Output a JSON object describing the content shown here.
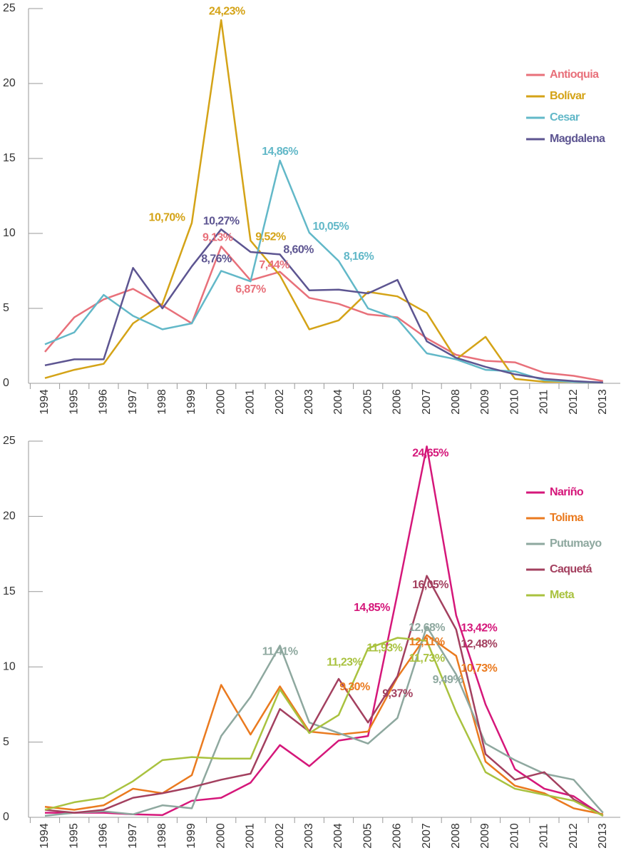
{
  "chart_data": [
    {
      "type": "line",
      "categories": [
        "1994",
        "1995",
        "1996",
        "1997",
        "1998",
        "1999",
        "2000",
        "2001",
        "2002",
        "2003",
        "2004",
        "2005",
        "2006",
        "2007",
        "2008",
        "2009",
        "2010",
        "2011",
        "2012",
        "2013"
      ],
      "ylim": [
        0,
        25
      ],
      "yticks": [
        0,
        5,
        10,
        15,
        20,
        25
      ],
      "legend": "right",
      "series": [
        {
          "name": "Antioquia",
          "color": "#e8707a",
          "values": [
            2.1,
            4.4,
            5.6,
            6.3,
            5.2,
            4.0,
            9.13,
            6.87,
            7.44,
            5.7,
            5.3,
            4.6,
            4.4,
            3.0,
            1.9,
            1.5,
            1.4,
            0.7,
            0.5,
            0.15
          ],
          "value_labels": [
            null,
            null,
            null,
            null,
            null,
            null,
            "9,13%",
            "6,87%",
            "7,44%",
            null,
            null,
            null,
            null,
            null,
            null,
            null,
            null,
            null,
            null,
            null
          ]
        },
        {
          "name": "Bolívar",
          "color": "#d4a317",
          "values": [
            0.35,
            0.9,
            1.3,
            4.0,
            5.3,
            10.7,
            24.23,
            9.52,
            7.2,
            3.6,
            4.2,
            6.1,
            5.8,
            4.7,
            1.6,
            3.1,
            0.3,
            0.1,
            0.1,
            0.05
          ],
          "value_labels": [
            null,
            null,
            null,
            null,
            null,
            "10,70%",
            "24,23%",
            "9,52%",
            null,
            null,
            null,
            null,
            null,
            null,
            null,
            null,
            null,
            null,
            null,
            null
          ]
        },
        {
          "name": "Cesar",
          "color": "#62b8c8",
          "values": [
            2.6,
            3.4,
            5.9,
            4.5,
            3.6,
            4.0,
            7.5,
            6.8,
            14.86,
            10.05,
            8.16,
            5.0,
            4.3,
            2.0,
            1.6,
            0.9,
            0.8,
            0.2,
            0.1,
            0.05
          ],
          "value_labels": [
            null,
            null,
            null,
            null,
            null,
            null,
            null,
            null,
            "14,86%",
            "10,05%",
            "8,16%",
            null,
            null,
            null,
            null,
            null,
            null,
            null,
            null,
            null
          ]
        },
        {
          "name": "Magdalena",
          "color": "#5d5591",
          "values": [
            1.2,
            1.6,
            1.6,
            7.7,
            5.0,
            7.8,
            10.27,
            8.76,
            8.6,
            6.2,
            6.25,
            6.0,
            6.9,
            2.8,
            1.7,
            1.1,
            0.6,
            0.3,
            0.15,
            0.05
          ],
          "value_labels": [
            null,
            null,
            null,
            null,
            null,
            null,
            "10,27%",
            "8,76%",
            "8,60%",
            null,
            null,
            null,
            null,
            null,
            null,
            null,
            null,
            null,
            null,
            null
          ]
        }
      ]
    },
    {
      "type": "line",
      "categories": [
        "1994",
        "1995",
        "1996",
        "1997",
        "1998",
        "1999",
        "2000",
        "2001",
        "2002",
        "2003",
        "2004",
        "2005",
        "2006",
        "2007",
        "2008",
        "2009",
        "2010",
        "2011",
        "2012",
        "2013"
      ],
      "ylim": [
        0,
        25
      ],
      "yticks": [
        0,
        5,
        10,
        15,
        20,
        25
      ],
      "legend": "right",
      "series": [
        {
          "name": "Nariño",
          "color": "#d5177a",
          "values": [
            0.3,
            0.3,
            0.3,
            0.2,
            0.15,
            1.1,
            1.3,
            2.3,
            4.8,
            3.4,
            5.1,
            5.4,
            14.85,
            24.65,
            13.42,
            7.5,
            3.2,
            1.9,
            1.4,
            0.1
          ],
          "value_labels": [
            null,
            null,
            null,
            null,
            null,
            null,
            null,
            null,
            null,
            null,
            null,
            null,
            "14,85%",
            "24,65%",
            "13,42%",
            null,
            null,
            null,
            null,
            null
          ]
        },
        {
          "name": "Tolima",
          "color": "#ea7a1f",
          "values": [
            0.7,
            0.5,
            0.8,
            1.9,
            1.6,
            2.8,
            8.8,
            5.5,
            8.7,
            5.7,
            5.5,
            5.7,
            9.3,
            12.11,
            10.73,
            3.7,
            2.1,
            1.6,
            0.6,
            0.2
          ],
          "value_labels": [
            null,
            null,
            null,
            null,
            null,
            null,
            null,
            null,
            null,
            null,
            null,
            null,
            "9,30%",
            "12,11%",
            "10,73%",
            null,
            null,
            null,
            null,
            null
          ]
        },
        {
          "name": "Putumayo",
          "color": "#8ea89f",
          "values": [
            0.1,
            0.3,
            0.4,
            0.2,
            0.8,
            0.6,
            5.4,
            8.0,
            11.41,
            6.3,
            5.6,
            4.9,
            6.6,
            12.68,
            9.49,
            4.9,
            3.8,
            2.9,
            2.5,
            0.3
          ],
          "value_labels": [
            null,
            null,
            null,
            null,
            null,
            null,
            null,
            null,
            "11,41%",
            null,
            null,
            null,
            null,
            "12,68%",
            "9,49%",
            null,
            null,
            null,
            null,
            null
          ]
        },
        {
          "name": "Caquetá",
          "color": "#a3405f",
          "values": [
            0.5,
            0.3,
            0.5,
            1.3,
            1.6,
            2.0,
            2.5,
            2.9,
            7.2,
            5.7,
            9.2,
            6.3,
            9.37,
            16.05,
            12.48,
            4.2,
            2.5,
            3.0,
            1.2,
            0.1
          ],
          "value_labels": [
            null,
            null,
            null,
            null,
            null,
            null,
            null,
            null,
            null,
            null,
            null,
            null,
            "9,37%",
            "16,05%",
            "12,48%",
            null,
            null,
            null,
            null,
            null
          ]
        },
        {
          "name": "Meta",
          "color": "#a9c23f",
          "values": [
            0.5,
            1.0,
            1.3,
            2.4,
            3.8,
            4.0,
            3.9,
            3.9,
            8.5,
            5.6,
            6.8,
            11.23,
            11.93,
            11.73,
            7.0,
            3.0,
            1.9,
            1.5,
            1.1,
            0.1
          ],
          "value_labels": [
            null,
            null,
            null,
            null,
            null,
            null,
            null,
            null,
            null,
            null,
            null,
            "11,23%",
            "11,93%",
            "11,73%",
            null,
            null,
            null,
            null,
            null,
            null
          ]
        }
      ]
    }
  ]
}
